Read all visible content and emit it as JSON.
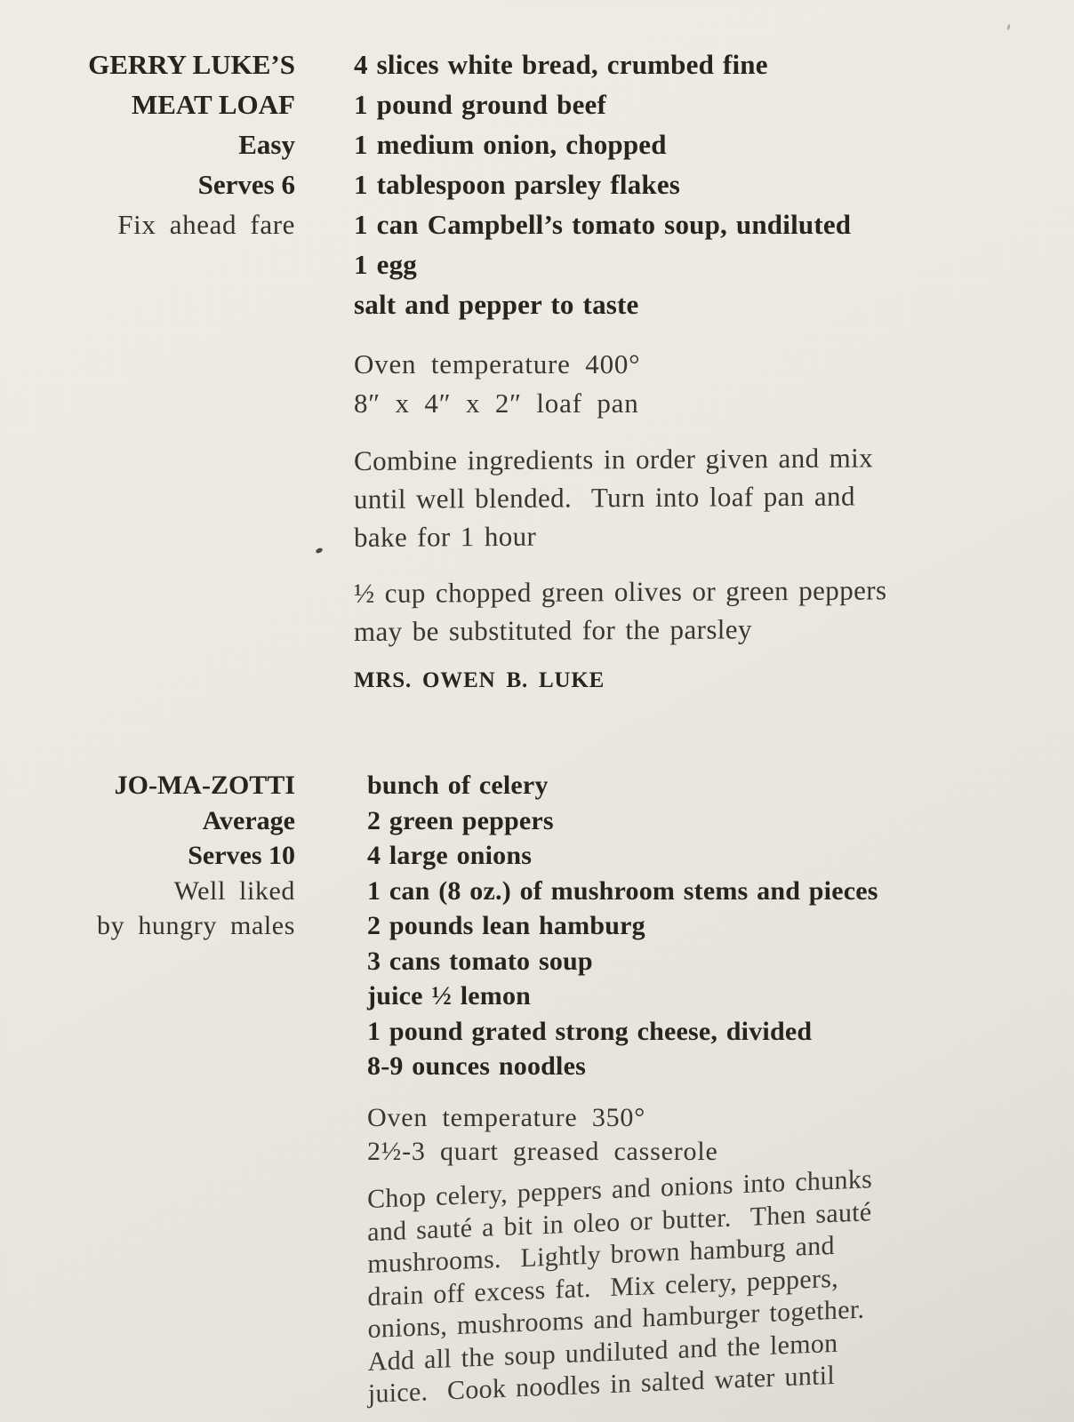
{
  "document": {
    "kind": "cookbook-page",
    "ink_color": "#312d28",
    "paper_color": "#ece8e1",
    "recipes": [
      {
        "meta": [
          {
            "text": "GERRY LUKE’S",
            "cls": "bold"
          },
          {
            "text": "MEAT LOAF",
            "cls": "bold"
          },
          {
            "text": "Easy",
            "cls": "bold"
          },
          {
            "text": "Serves 6",
            "cls": "bold"
          },
          {
            "text": "Fix ahead fare",
            "cls": "regular"
          }
        ],
        "ingredients": [
          "4 slices white bread, crumbed fine",
          "1 pound ground beef",
          "1 medium onion, chopped",
          "1 tablespoon parsley flakes",
          "1 can Campbell’s tomato soup, undiluted",
          "1 egg",
          "salt and pepper to taste"
        ],
        "prep": [
          "Oven temperature 400°",
          "8″ x 4″ x 2″ loaf pan"
        ],
        "paragraphs": [
          [
            "Combine ingredients in order given and mix",
            "until well blended.  Turn into loaf pan and",
            "bake for 1 hour"
          ],
          [
            "½ cup chopped green olives or green peppers",
            "may be substituted for the parsley"
          ]
        ],
        "attribution": "MRS. OWEN B. LUKE"
      },
      {
        "meta": [
          {
            "text": "JO-MA-ZOTTI",
            "cls": "bold"
          },
          {
            "text": "Average",
            "cls": "bold"
          },
          {
            "text": "Serves 10",
            "cls": "bold"
          },
          {
            "text": "Well liked",
            "cls": "regular"
          },
          {
            "text": "by hungry males",
            "cls": "regular"
          }
        ],
        "ingredients": [
          "bunch of celery",
          "2 green peppers",
          "4 large onions",
          "1 can (8 oz.) of mushroom stems and pieces",
          "2 pounds lean hamburg",
          "3 cans tomato soup",
          "juice ½ lemon",
          "1 pound grated strong cheese, divided",
          "8-9 ounces noodles"
        ],
        "prep": [
          "Oven temperature 350°",
          "2½-3 quart greased casserole"
        ],
        "paragraphs": [
          [
            "Chop celery, peppers and onions into chunks",
            "and sauté a bit in oleo or butter.  Then sauté",
            "mushrooms.  Lightly brown hamburg and",
            "drain off excess fat.  Mix celery, peppers,",
            "onions, mushrooms and hamburger together.",
            "Add all the soup undiluted and the lemon",
            "juice.  Cook noodles in salted water until"
          ]
        ],
        "attribution": ""
      }
    ]
  }
}
